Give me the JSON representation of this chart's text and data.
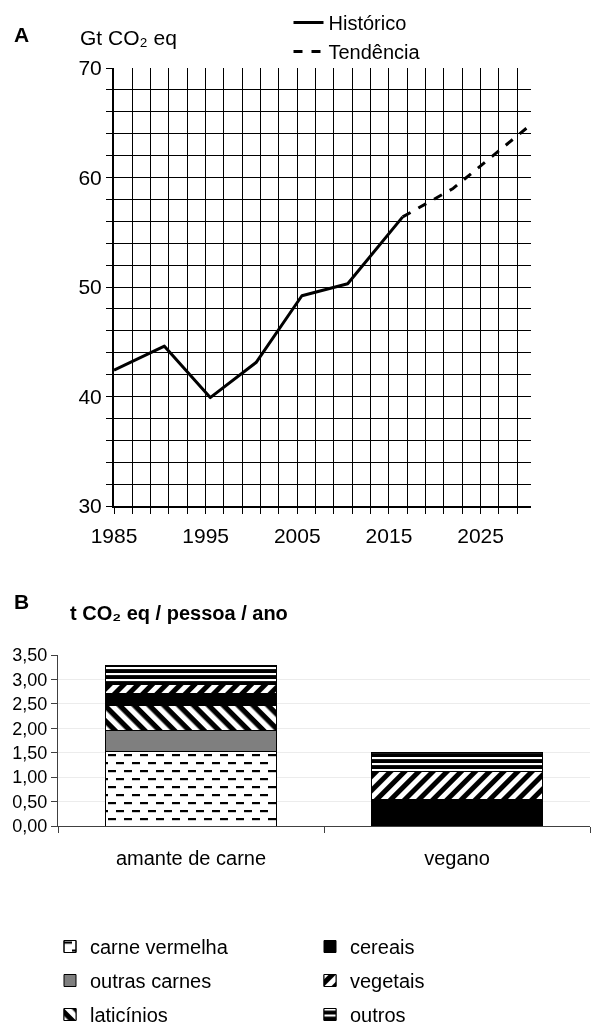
{
  "chart_data": [
    {
      "type": "line",
      "title": "A",
      "ylabel": "Gt CO₂ eq",
      "xlim": [
        1985,
        2030.5
      ],
      "ylim": [
        30,
        70
      ],
      "xticks": [
        1985,
        {
          "value": 1987,
          "label": null
        },
        {
          "value": 1989,
          "label": null
        },
        {
          "value": 1991,
          "label": null
        },
        {
          "value": 1993,
          "label": null
        },
        1995,
        {
          "value": 1997,
          "label": null
        },
        {
          "value": 1999,
          "label": null
        },
        {
          "value": 2001,
          "label": null
        },
        {
          "value": 2003,
          "label": null
        },
        2005,
        {
          "value": 2007,
          "label": null
        },
        {
          "value": 2009,
          "label": null
        },
        {
          "value": 2011,
          "label": null
        },
        {
          "value": 2013,
          "label": null
        },
        2015,
        {
          "value": 2017,
          "label": null
        },
        {
          "value": 2019,
          "label": null
        },
        {
          "value": 2021,
          "label": null
        },
        {
          "value": 2023,
          "label": null
        },
        2025,
        {
          "value": 2027,
          "label": null
        },
        {
          "value": 2029,
          "label": null
        }
      ],
      "yticks": [
        30,
        {
          "value": 32,
          "label": null
        },
        {
          "value": 34,
          "label": null
        },
        {
          "value": 36,
          "label": null
        },
        {
          "value": 38,
          "label": null
        },
        40,
        {
          "value": 42,
          "label": null
        },
        {
          "value": 44,
          "label": null
        },
        {
          "value": 46,
          "label": null
        },
        {
          "value": 48,
          "label": null
        },
        50,
        {
          "value": 52,
          "label": null
        },
        {
          "value": 54,
          "label": null
        },
        {
          "value": 56,
          "label": null
        },
        {
          "value": 58,
          "label": null
        },
        60,
        {
          "value": 62,
          "label": null
        },
        {
          "value": 64,
          "label": null
        },
        {
          "value": 66,
          "label": null
        },
        {
          "value": 68,
          "label": null
        },
        70
      ],
      "grid": true,
      "legend": "top",
      "series": [
        {
          "name": "Histórico",
          "color": "#000000",
          "line_style": "solid",
          "x": [
            1985,
            1990.5,
            1995.5,
            2000.5,
            2005.5,
            2010.5,
            2016.5
          ],
          "values": [
            42.4,
            44.6,
            39.9,
            43.1,
            49.2,
            50.3,
            56.4
          ]
        },
        {
          "name": "Tendência",
          "color": "#000000",
          "line_style": "dashed",
          "x": [
            2016.5,
            2022,
            2030
          ],
          "values": [
            56.4,
            59.0,
            64.5
          ]
        }
      ]
    },
    {
      "type": "bar",
      "stacked": true,
      "title": "B",
      "ylabel": "t CO₂ eq / pessoa / ano",
      "categories": [
        "amante de carne",
        "vegano"
      ],
      "ylim": [
        0,
        3.5
      ],
      "yticks": [
        {
          "value": 0,
          "label": "0,00"
        },
        {
          "value": 0.5,
          "label": "0,50"
        },
        {
          "value": 1,
          "label": "1,00"
        },
        {
          "value": 1.5,
          "label": "1,50"
        },
        {
          "value": 2,
          "label": "2,00"
        },
        {
          "value": 2.5,
          "label": "2,50"
        },
        {
          "value": 3,
          "label": "3,00"
        },
        {
          "value": 3.5,
          "label": "3,50"
        }
      ],
      "grid": "y",
      "legend": "bottom",
      "series": [
        {
          "name": "carne vermelha",
          "color": "#ffffff",
          "values": [
            1.53,
            null
          ]
        },
        {
          "name": "outras carnes",
          "color": "#7f7f7f",
          "values": [
            0.43,
            null
          ]
        },
        {
          "name": "laticínios",
          "color": "#000000",
          "values": [
            0.51,
            null
          ]
        },
        {
          "name": "cereais",
          "color": "#000000",
          "values": [
            0.24,
            0.55
          ]
        },
        {
          "name": "vegetais",
          "color": "#000000",
          "values": [
            0.18,
            0.57
          ]
        },
        {
          "name": "outros",
          "color": "#000000",
          "values": [
            0.39,
            0.39
          ]
        }
      ]
    }
  ]
}
